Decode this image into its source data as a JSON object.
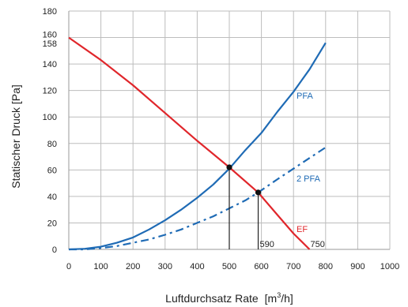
{
  "chart_data": {
    "type": "line",
    "xlabel": "Luftdurchsatz Rate",
    "xlabel_unit": "[m",
    "xlabel_unit_sup": "3",
    "xlabel_unit_end": "/h]",
    "ylabel": "Statischer Druck [Pa]",
    "xlim": [
      0,
      1000
    ],
    "ylim": [
      0,
      180
    ],
    "x_ticks": [
      0,
      100,
      200,
      300,
      400,
      500,
      600,
      700,
      800,
      900,
      1000
    ],
    "y_ticks": [
      0,
      20,
      40,
      60,
      80,
      100,
      120,
      140,
      158,
      160,
      180
    ],
    "grid": true,
    "series": [
      {
        "name": "PFA",
        "color": "#1f6bb5",
        "style": "solid",
        "x": [
          0,
          50,
          100,
          150,
          200,
          250,
          300,
          350,
          400,
          450,
          500,
          550,
          600,
          650,
          700,
          750,
          800
        ],
        "y": [
          0,
          0.5,
          2,
          5,
          9,
          15,
          22,
          30,
          39,
          49,
          61,
          75,
          88,
          104,
          119,
          136,
          156
        ]
      },
      {
        "name": "2 PFA",
        "color": "#1f6bb5",
        "style": "dashdot",
        "x": [
          0,
          50,
          100,
          150,
          200,
          250,
          300,
          350,
          400,
          450,
          500,
          550,
          590,
          650,
          700,
          750,
          800
        ],
        "y": [
          0,
          0,
          1,
          2.5,
          5,
          7.5,
          11,
          15,
          20,
          25,
          31,
          37,
          43,
          53,
          61,
          69,
          77
        ]
      },
      {
        "name": "EF",
        "color": "#e0262b",
        "style": "solid",
        "x": [
          0,
          100,
          200,
          300,
          400,
          500,
          590,
          650,
          700,
          750
        ],
        "y": [
          160,
          143,
          124,
          103,
          82,
          62,
          43,
          26,
          12,
          0
        ]
      }
    ],
    "intersections": [
      {
        "x": 500,
        "y": 62
      },
      {
        "x": 590,
        "y": 43
      }
    ],
    "annotations": [
      "590",
      "750"
    ]
  }
}
